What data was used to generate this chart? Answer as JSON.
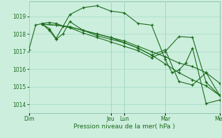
{
  "xlabel": "Pression niveau de la mer( hPa )",
  "bg_color": "#cceedd",
  "grid_color": "#aaddcc",
  "line_color": "#1a6b1a",
  "xlim": [
    0,
    7.0
  ],
  "ylim": [
    1013.5,
    1019.85
  ],
  "yticks": [
    1014,
    1015,
    1016,
    1017,
    1018,
    1019
  ],
  "xtick_positions": [
    0.0,
    3.0,
    3.5,
    5.0,
    7.0
  ],
  "xtick_labels": [
    "Dim",
    "Jeu",
    "Lun",
    "Mar",
    "Mer"
  ],
  "day_lines": [
    0.0,
    3.0,
    3.5,
    5.0,
    7.0
  ],
  "series": [
    [
      0.0,
      1017.1,
      0.25,
      1018.5,
      0.5,
      1018.6,
      0.75,
      1018.65,
      1.0,
      1018.6,
      1.25,
      1018.45,
      1.5,
      1018.35,
      2.0,
      1018.05,
      2.5,
      1017.8,
      3.0,
      1017.55,
      3.5,
      1017.3,
      4.0,
      1017.05,
      4.5,
      1016.65,
      5.0,
      1017.0,
      5.5,
      1017.85,
      6.0,
      1017.8,
      6.5,
      1015.25,
      7.0,
      1014.5
    ],
    [
      0.5,
      1018.55,
      0.75,
      1018.3,
      1.0,
      1017.75,
      1.5,
      1019.1,
      2.0,
      1019.5,
      2.5,
      1019.6,
      3.0,
      1019.3,
      3.5,
      1019.2,
      4.0,
      1018.6,
      4.5,
      1018.5,
      5.0,
      1016.55,
      5.25,
      1015.8,
      5.5,
      1015.95,
      5.75,
      1016.35,
      6.0,
      1017.2,
      6.5,
      1014.05,
      7.0,
      1014.25
    ],
    [
      0.5,
      1018.55,
      0.75,
      1018.2,
      1.0,
      1017.7,
      1.25,
      1018.0,
      1.5,
      1018.7,
      2.0,
      1018.2,
      2.5,
      1017.9,
      3.0,
      1017.7,
      3.5,
      1017.5,
      4.0,
      1017.2,
      4.5,
      1016.8,
      5.0,
      1017.1,
      5.5,
      1015.3,
      6.0,
      1015.1,
      6.5,
      1015.8,
      7.0,
      1014.5
    ],
    [
      0.5,
      1018.55,
      1.0,
      1018.5,
      1.5,
      1018.4,
      2.0,
      1018.2,
      2.5,
      1018.0,
      3.0,
      1017.8,
      3.5,
      1017.6,
      4.0,
      1017.3,
      4.5,
      1017.0,
      5.0,
      1016.7,
      5.5,
      1016.35,
      6.0,
      1016.15,
      6.5,
      1015.8,
      7.0,
      1015.2
    ],
    [
      0.5,
      1018.55,
      1.0,
      1018.5,
      1.5,
      1018.4,
      2.0,
      1018.2,
      2.5,
      1018.0,
      3.0,
      1017.8,
      3.5,
      1017.5,
      4.0,
      1017.2,
      4.5,
      1016.8,
      5.0,
      1016.3,
      5.5,
      1015.8,
      6.0,
      1015.4,
      6.5,
      1015.05,
      7.0,
      1014.5
    ]
  ]
}
